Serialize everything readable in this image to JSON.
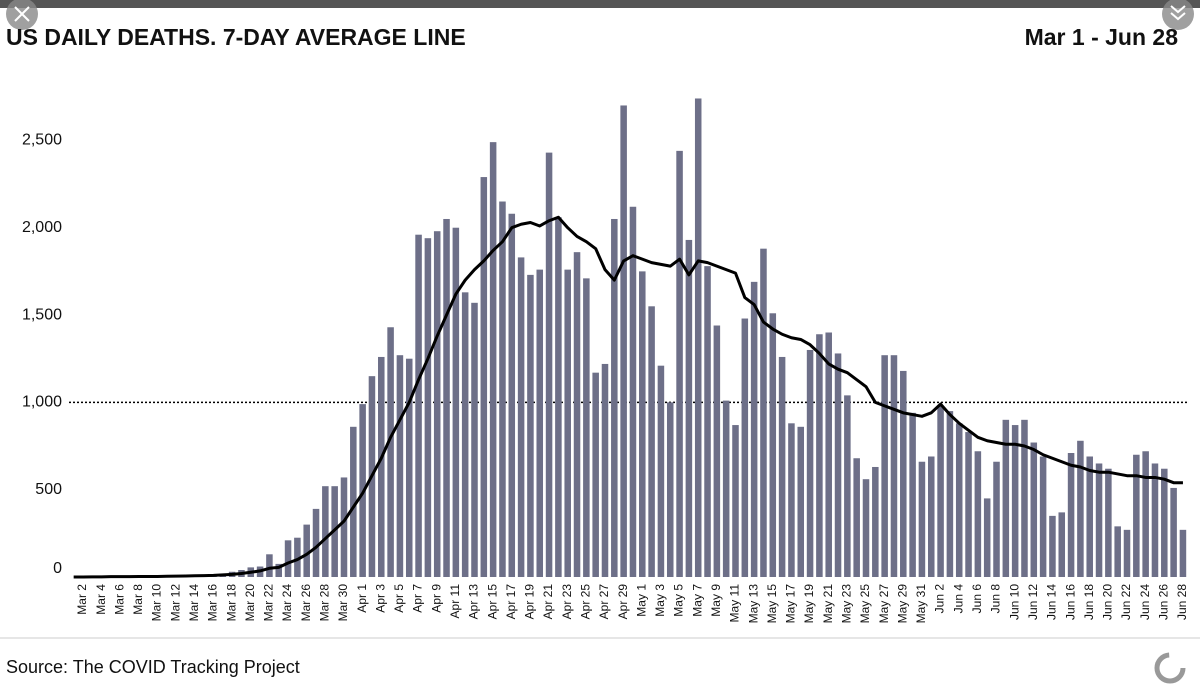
{
  "chart_data": {
    "type": "bar",
    "title": "US DAILY DEATHS. 7-DAY AVERAGE LINE",
    "subtitle": "Mar 1 - Jun 28",
    "source": "Source: The COVID Tracking Project",
    "categories": [
      null,
      "Mar 2",
      null,
      "Mar 4",
      null,
      "Mar 6",
      null,
      "Mar 8",
      null,
      "Mar 10",
      null,
      "Mar 12",
      null,
      "Mar 14",
      null,
      "Mar 16",
      null,
      "Mar 18",
      null,
      "Mar 20",
      null,
      "Mar 22",
      null,
      "Mar 24",
      null,
      "Mar 26",
      null,
      "Mar 28",
      null,
      "Mar 30",
      null,
      "Apr 1",
      null,
      "Apr 3",
      null,
      "Apr 5",
      null,
      "Apr 7",
      null,
      "Apr 9",
      null,
      "Apr 11",
      null,
      "Apr 13",
      null,
      "Apr 15",
      null,
      "Apr 17",
      null,
      "Apr 19",
      null,
      "Apr 21",
      null,
      "Apr 23",
      null,
      "Apr 25",
      null,
      "Apr 27",
      null,
      "Apr 29",
      null,
      "May 1",
      null,
      "May 3",
      null,
      "May 5",
      null,
      "May 7",
      null,
      "May 9",
      null,
      "May 11",
      null,
      "May 13",
      null,
      "May 15",
      null,
      "May 17",
      null,
      "May 19",
      null,
      "May 21",
      null,
      "May 23",
      null,
      "May 25",
      null,
      "May 27",
      null,
      "May 29",
      null,
      "May 31",
      null,
      "Jun 2",
      null,
      "Jun 4",
      null,
      "Jun 6",
      null,
      "Jun 8",
      null,
      "Jun 10",
      null,
      "Jun 12",
      null,
      "Jun 14",
      null,
      "Jun 16",
      null,
      "Jun 18",
      null,
      "Jun 20",
      null,
      "Jun 22",
      null,
      "Jun 24",
      null,
      "Jun 26",
      null,
      "Jun 28"
    ],
    "series": [
      {
        "type": "bar",
        "color": "#6d6f88",
        "values": [
          0,
          1,
          3,
          2,
          1,
          2,
          3,
          5,
          4,
          5,
          7,
          8,
          10,
          10,
          10,
          15,
          20,
          30,
          40,
          55,
          60,
          130,
          75,
          210,
          225,
          300,
          390,
          520,
          520,
          570,
          860,
          990,
          1150,
          1260,
          1430,
          1270,
          1250,
          1960,
          1940,
          1980,
          2050,
          2000,
          1630,
          1570,
          2290,
          2490,
          2150,
          2080,
          1830,
          1730,
          1760,
          2430,
          2060,
          1760,
          1860,
          1710,
          1170,
          1220,
          2050,
          2700,
          2120,
          1750,
          1550,
          1210,
          1000,
          2440,
          1930,
          2740,
          1780,
          1440,
          1010,
          870,
          1480,
          1690,
          1880,
          1510,
          1260,
          880,
          860,
          1300,
          1390,
          1400,
          1280,
          1040,
          680,
          560,
          630,
          1270,
          1270,
          1180,
          940,
          660,
          690,
          980,
          950,
          880,
          830,
          720,
          450,
          660,
          900,
          870,
          900,
          770,
          690,
          350,
          370,
          710,
          780,
          690,
          650,
          620,
          290,
          270,
          700,
          720,
          650,
          620,
          510,
          270
        ]
      },
      {
        "type": "line",
        "color": "#000000",
        "values": [
          0,
          0,
          1,
          1,
          2,
          2,
          2,
          3,
          3,
          3,
          4,
          5,
          6,
          7,
          8,
          9,
          12,
          15,
          20,
          27,
          35,
          50,
          55,
          80,
          100,
          130,
          170,
          220,
          270,
          320,
          400,
          480,
          580,
          680,
          800,
          900,
          1000,
          1130,
          1250,
          1380,
          1500,
          1620,
          1700,
          1760,
          1810,
          1870,
          1920,
          2000,
          2020,
          2030,
          2010,
          2040,
          2060,
          2000,
          1950,
          1920,
          1880,
          1760,
          1700,
          1810,
          1840,
          1820,
          1800,
          1790,
          1780,
          1820,
          1730,
          1810,
          1800,
          1780,
          1760,
          1740,
          1600,
          1560,
          1460,
          1420,
          1390,
          1370,
          1360,
          1330,
          1280,
          1220,
          1190,
          1170,
          1130,
          1090,
          1000,
          980,
          960,
          940,
          930,
          920,
          940,
          990,
          930,
          880,
          840,
          800,
          780,
          770,
          760,
          760,
          750,
          730,
          700,
          680,
          660,
          640,
          630,
          610,
          600,
          600,
          590,
          580,
          580,
          570,
          570,
          560,
          540,
          540
        ]
      }
    ],
    "ylim": [
      0,
      2800
    ],
    "yticks": [
      0,
      500,
      {
        "value": 1000,
        "label": "1,000"
      },
      {
        "value": 1500,
        "label": "1,500"
      },
      {
        "value": 2000,
        "label": "2,000"
      },
      {
        "value": 2500,
        "label": "2,500"
      }
    ],
    "reference_line": 1000,
    "grid": false
  }
}
